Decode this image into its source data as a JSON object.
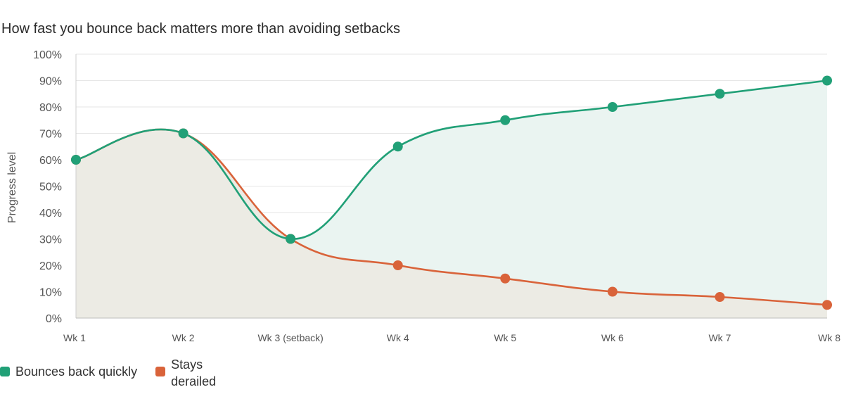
{
  "chart_data": {
    "type": "area",
    "title": "How fast you bounce back matters more than avoiding setbacks",
    "xlabel": "",
    "ylabel": "Progress level",
    "ylim": [
      0,
      100
    ],
    "yticks": [
      "0%",
      "10%",
      "20%",
      "30%",
      "40%",
      "50%",
      "60%",
      "70%",
      "80%",
      "90%",
      "100%"
    ],
    "categories": [
      "Wk 1",
      "Wk 2",
      "Wk 3 (setback)",
      "Wk 4",
      "Wk 5",
      "Wk 6",
      "Wk 7",
      "Wk 8"
    ],
    "series": [
      {
        "name": "Stays derailed",
        "color": "#d9633a",
        "fill": "#ecebe4",
        "values": [
          60,
          70,
          30,
          20,
          15,
          10,
          8,
          5
        ]
      },
      {
        "name": "Bounces back quickly",
        "color": "#21a077",
        "fill": "#eaf4f1",
        "values": [
          60,
          70,
          30,
          65,
          75,
          80,
          85,
          90
        ]
      }
    ],
    "legend": [
      "Bounces back quickly",
      "Stays derailed"
    ],
    "grid": true
  }
}
